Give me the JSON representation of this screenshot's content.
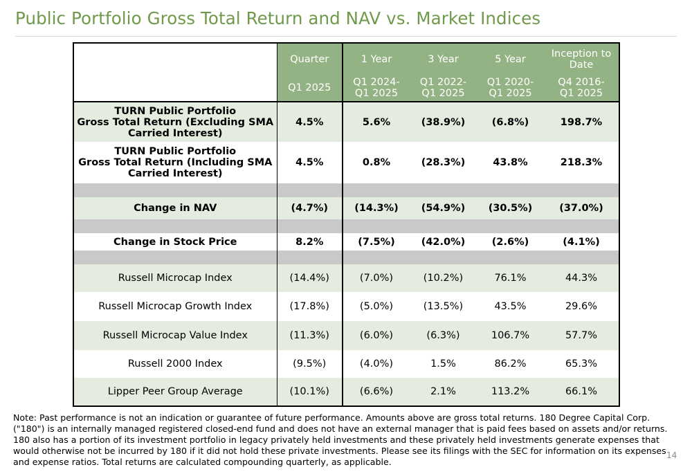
{
  "title": "Public Portfolio Gross Total Return and NAV vs. Market Indices",
  "table": {
    "header_periods": [
      "Quarter",
      "1 Year",
      "3 Year",
      "5 Year",
      "Inception to Date"
    ],
    "header_ranges": [
      "Q1 2025",
      "Q1 2024-\nQ1 2025",
      "Q1 2022-\nQ1 2025",
      "Q1 2020-\nQ1 2025",
      "Q4 2016-\nQ1 2025"
    ],
    "rows": [
      {
        "label": "TURN Public Portfolio\nGross Total Return (Excluding SMA\nCarried Interest)",
        "values": [
          "4.5%",
          "5.6%",
          "(38.9%)",
          "(6.8%)",
          "198.7%"
        ]
      },
      {
        "label": "TURN Public Portfolio\nGross Total Return (Including SMA\nCarried Interest)",
        "values": [
          "4.5%",
          "0.8%",
          "(28.3%)",
          "43.8%",
          "218.3%"
        ]
      },
      {
        "label": "Change in NAV",
        "values": [
          "(4.7%)",
          "(14.3%)",
          "(54.9%)",
          "(30.5%)",
          "(37.0%)"
        ]
      },
      {
        "label": "Change in Stock Price",
        "values": [
          "8.2%",
          "(7.5%)",
          "(42.0%)",
          "(2.6%)",
          "(4.1%)"
        ]
      },
      {
        "label": "Russell Microcap Index",
        "values": [
          "(14.4%)",
          "(7.0%)",
          "(10.2%)",
          "76.1%",
          "44.3%"
        ]
      },
      {
        "label": "Russell Microcap Growth Index",
        "values": [
          "(17.8%)",
          "(5.0%)",
          "(13.5%)",
          "43.5%",
          "29.6%"
        ]
      },
      {
        "label": "Russell Microcap Value Index",
        "values": [
          "(11.3%)",
          "(6.0%)",
          "(6.3%)",
          "106.7%",
          "57.7%"
        ]
      },
      {
        "label": "Russell 2000 Index",
        "values": [
          "(9.5%)",
          "(4.0%)",
          "1.5%",
          "86.2%",
          "65.3%"
        ]
      },
      {
        "label": "Lipper Peer Group Average",
        "values": [
          "(10.1%)",
          "(6.6%)",
          "2.1%",
          "113.2%",
          "66.1%"
        ]
      }
    ]
  },
  "note": "Note: Past performance is not an indication or guarantee of future performance.  Amounts above are gross total returns.  180 Degree Capital Corp. (\"180\") is an internally managed registered closed-end fund and does not have an external manager that is paid fees based on assets and/or returns.  180 also has a portion of its investment portfolio in legacy privately held investments and these privately held investments generate expenses that would otherwise not be incurred by 180 if it did not hold these private investments.  Please see its filings with the SEC for information on its expenses and expense ratios.  Total returns are calculated compounding quarterly, as applicable.",
  "page_number": "14",
  "colors": {
    "accent": "#6f9a4a",
    "header_fill": "#94b384",
    "band_fill": "#e4ece0",
    "separator_fill": "#c9c9c9"
  }
}
